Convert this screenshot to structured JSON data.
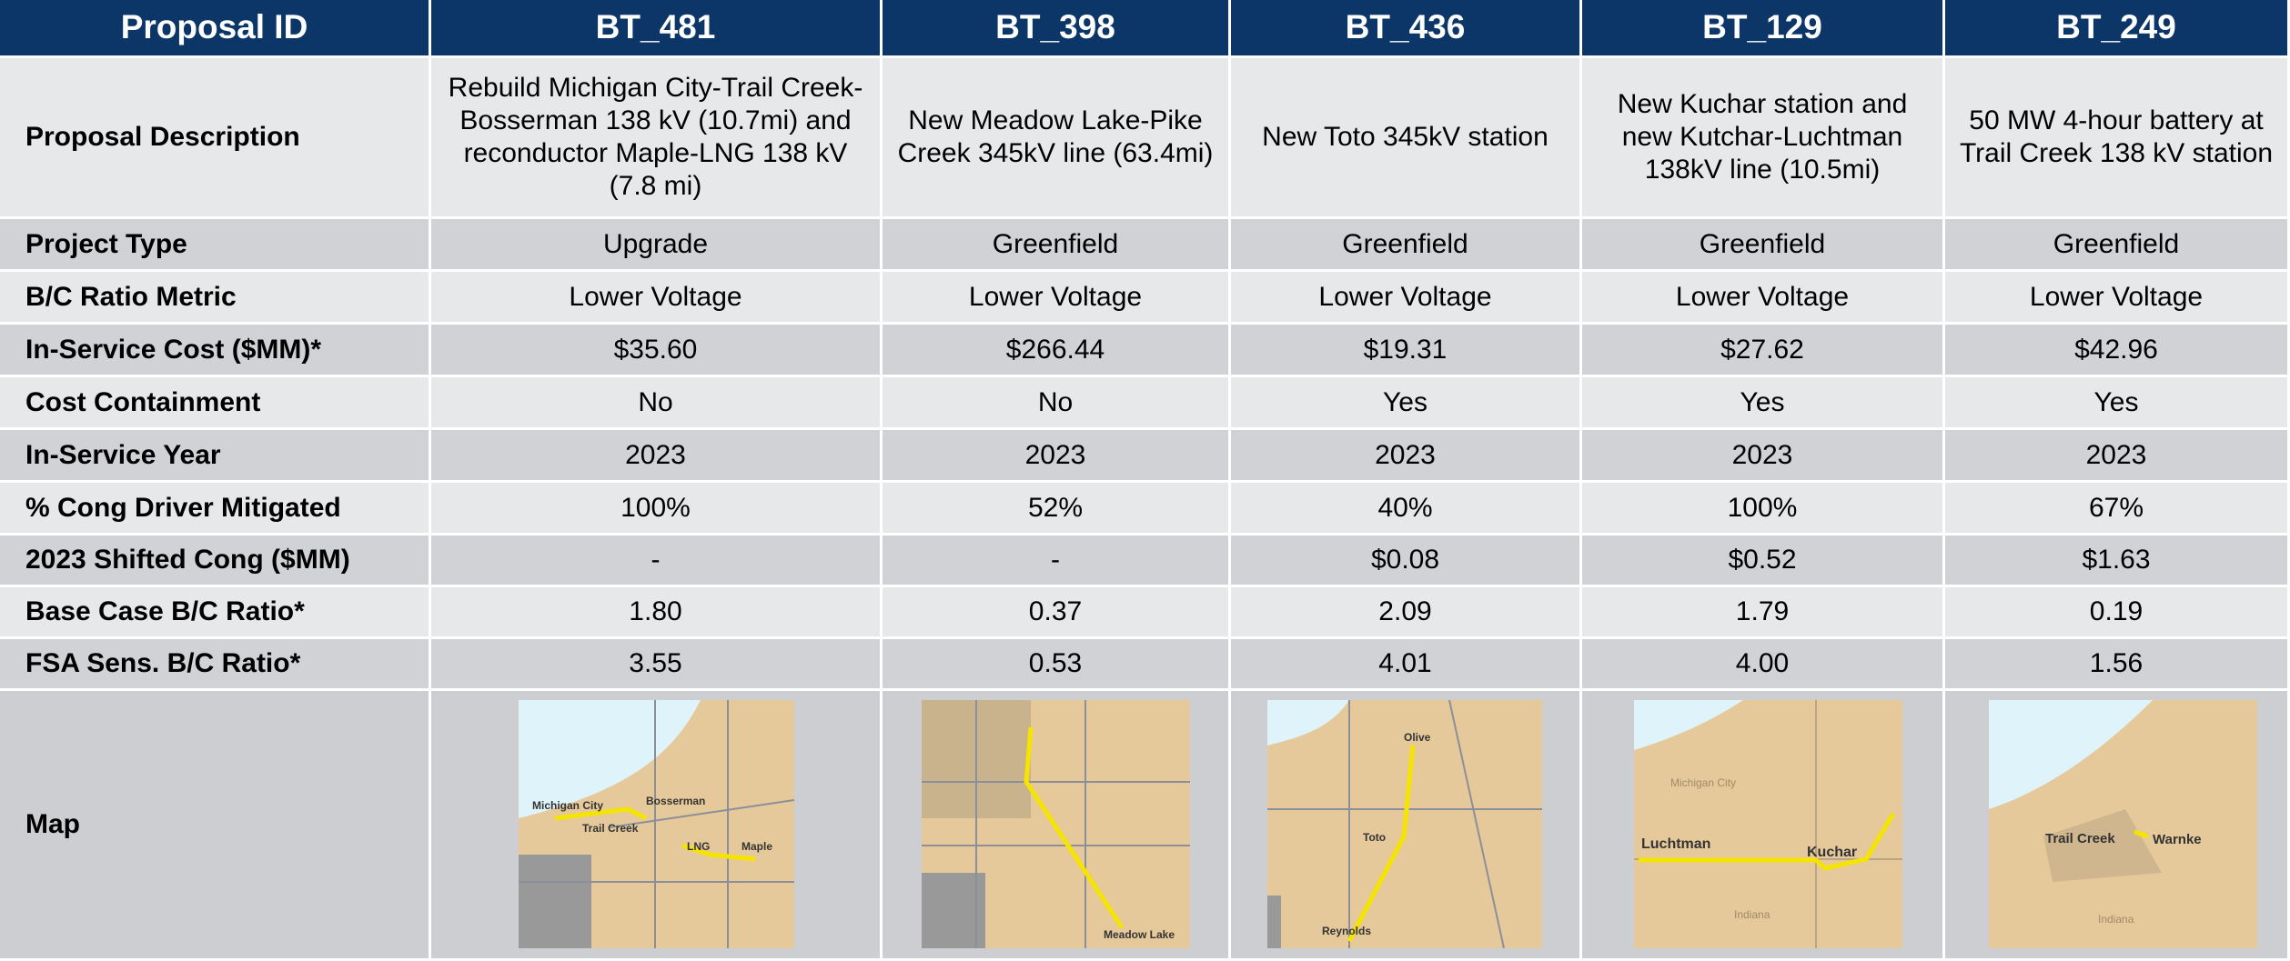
{
  "table": {
    "header": [
      "Proposal ID",
      "BT_481",
      "BT_398",
      "BT_436",
      "BT_129",
      "BT_249"
    ],
    "rows": [
      {
        "label": "Proposal Description",
        "cells": [
          "Rebuild Michigan City-Trail Creek-Bosserman 138 kV (10.7mi) and reconductor Maple-LNG 138 kV (7.8 mi)",
          "New Meadow Lake-Pike Creek 345kV line (63.4mi)",
          "New Toto 345kV station",
          "New Kuchar station and new Kutchar-Luchtman 138kV line (10.5mi)",
          "50 MW 4-hour battery at Trail Creek 138 kV station"
        ]
      },
      {
        "label": "Project Type",
        "cells": [
          "Upgrade",
          "Greenfield",
          "Greenfield",
          "Greenfield",
          "Greenfield"
        ]
      },
      {
        "label": "B/C Ratio Metric",
        "cells": [
          "Lower Voltage",
          "Lower Voltage",
          "Lower Voltage",
          "Lower Voltage",
          "Lower Voltage"
        ]
      },
      {
        "label": "In-Service Cost ($MM)*",
        "cells": [
          "$35.60",
          "$266.44",
          "$19.31",
          "$27.62",
          "$42.96"
        ]
      },
      {
        "label": "Cost Containment",
        "cells": [
          "No",
          "No",
          "Yes",
          "Yes",
          "Yes"
        ]
      },
      {
        "label": "In-Service Year",
        "cells": [
          "2023",
          "2023",
          "2023",
          "2023",
          "2023"
        ]
      },
      {
        "label": "% Cong Driver Mitigated",
        "cells": [
          "100%",
          "52%",
          "40%",
          "100%",
          "67%"
        ]
      },
      {
        "label": "2023 Shifted Cong ($MM)",
        "cells": [
          "-",
          "-",
          "$0.08",
          "$0.52",
          "$1.63"
        ]
      },
      {
        "label": "Base Case B/C Ratio*",
        "cells": [
          "1.80",
          "0.37",
          "2.09",
          "1.79",
          "0.19"
        ]
      },
      {
        "label": "FSA Sens. B/C Ratio*",
        "cells": [
          "3.55",
          "0.53",
          "4.01",
          "4.00",
          "1.56"
        ]
      }
    ],
    "map_row": {
      "label": "Map",
      "maps": [
        {
          "labels": [
            "Michigan City",
            "Bosserman",
            "Trail Creek",
            "LNG",
            "Maple"
          ]
        },
        {
          "labels": [
            "Meadow Lake"
          ]
        },
        {
          "labels": [
            "Olive",
            "Toto",
            "Reynolds"
          ]
        },
        {
          "labels": [
            "Luchtman",
            "Kuchar",
            "Michigan City",
            "Indiana"
          ]
        },
        {
          "labels": [
            "Trail Creek",
            "Warnke",
            "Indiana"
          ]
        }
      ]
    }
  }
}
